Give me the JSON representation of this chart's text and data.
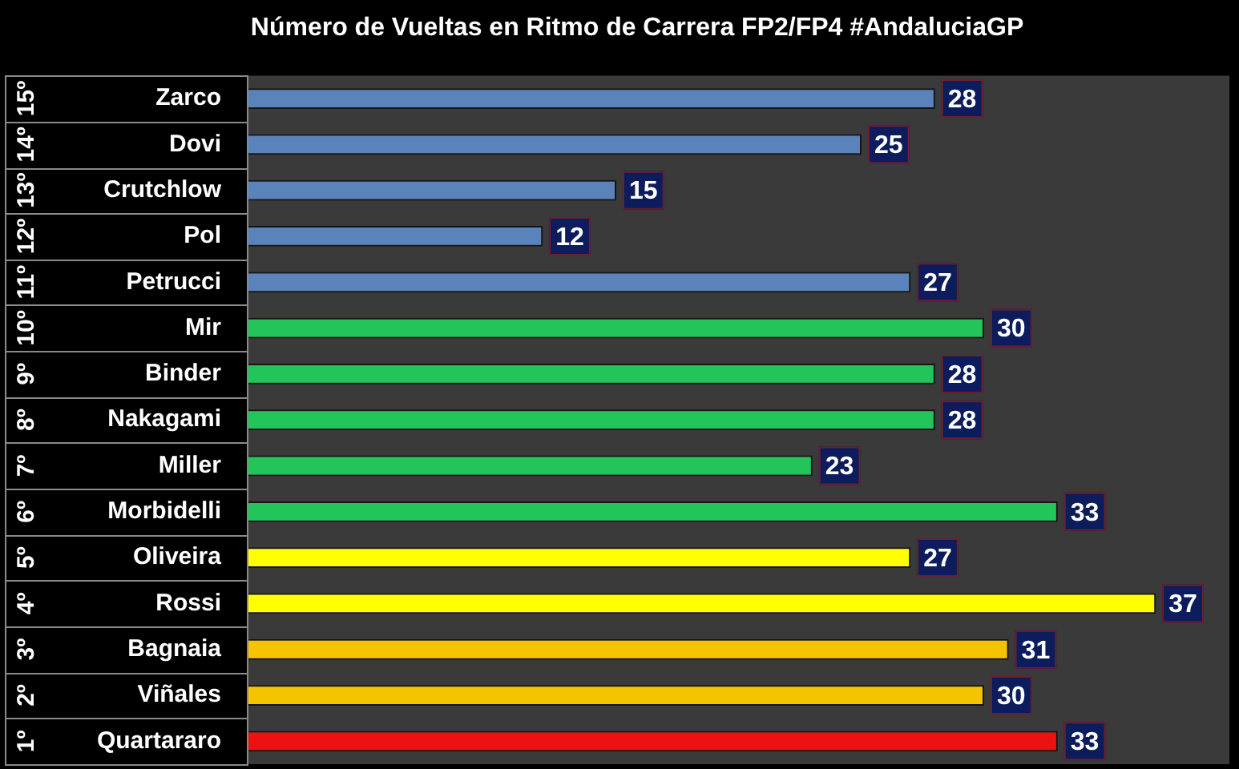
{
  "chart_data": {
    "type": "bar",
    "orientation": "horizontal",
    "title": "Número de Vueltas en Ritmo de Carrera FP2/FP4 #AndaluciaGP",
    "categories": [
      "Zarco",
      "Dovi",
      "Crutchlow",
      "Pol",
      "Petrucci",
      "Mir",
      "Binder",
      "Nakagami",
      "Miller",
      "Morbidelli",
      "Oliveira",
      "Rossi",
      "Bagnaia",
      "Viñales",
      "Quartararo"
    ],
    "values": [
      28,
      25,
      15,
      12,
      27,
      30,
      28,
      28,
      23,
      33,
      27,
      37,
      31,
      30,
      33
    ],
    "colors": [
      "#5a82bb",
      "#5a82bb",
      "#5a82bb",
      "#5a82bb",
      "#5a82bb",
      "#22c55a",
      "#22c55a",
      "#22c55a",
      "#22c55a",
      "#22c55a",
      "#ffff00",
      "#ffff00",
      "#f5c400",
      "#f5c400",
      "#ee1111"
    ],
    "annotations": [
      "15º",
      "14º",
      "13º",
      "12º",
      "11º",
      "10º",
      "9º",
      "8º",
      "7º",
      "6º",
      "5º",
      "4º",
      "3º",
      "2º",
      "1º"
    ],
    "data_labels": true,
    "grid": false,
    "legend": false,
    "tick_labels": "y"
  }
}
